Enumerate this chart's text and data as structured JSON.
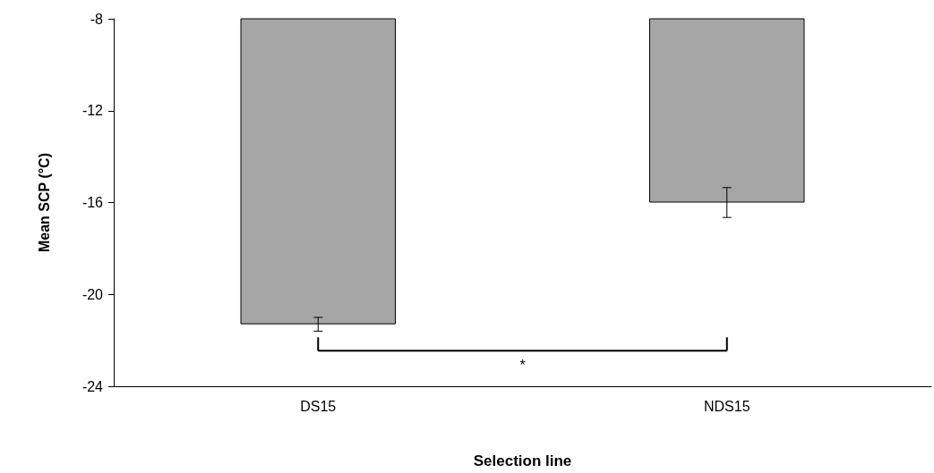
{
  "chart_data": {
    "type": "bar",
    "xlabel": "Selection line",
    "ylabel": "Mean SCP (°C)",
    "categories": [
      "DS15",
      "NDS15"
    ],
    "values": [
      -21.3,
      -16.0
    ],
    "errors": [
      0.3,
      0.65
    ],
    "color": "#a6a6a6",
    "ylim": [
      -24,
      -8
    ],
    "yticks": [
      -24,
      -20,
      -16,
      -12,
      -8
    ],
    "grid": false,
    "annotations": [
      "*"
    ]
  }
}
